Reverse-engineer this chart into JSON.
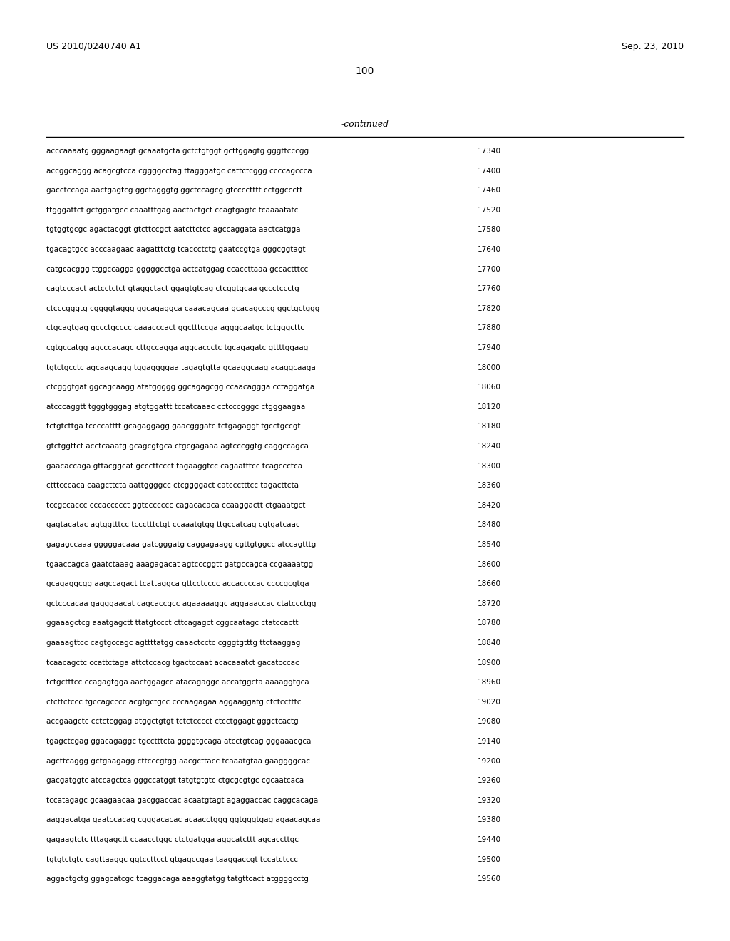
{
  "header_left": "US 2010/0240740 A1",
  "header_right": "Sep. 23, 2010",
  "page_number": "100",
  "continued_label": "-continued",
  "background_color": "#ffffff",
  "text_color": "#000000",
  "font_size_header": 9.0,
  "font_size_page": 10.0,
  "font_size_body": 7.5,
  "font_size_continued": 9.0,
  "sequence_lines": [
    [
      "acccaaaatg gggaagaagt gcaaatgcta gctctgtggt gcttggagtg gggttcccgg",
      "17340"
    ],
    [
      "accggcaggg acagcgtcca cggggcctag ttagggatgc cattctcggg ccccagccca",
      "17400"
    ],
    [
      "gacctccaga aactgagtcg ggctagggtg ggctccagcg gtcccctttt cctggccctt",
      "17460"
    ],
    [
      "ttgggattct gctggatgcc caaatttgag aactactgct ccagtgagtc tcaaaatatc",
      "17520"
    ],
    [
      "tgtggtgcgc agactacggt gtcttccgct aatcttctcc agccaggata aactcatgga",
      "17580"
    ],
    [
      "tgacagtgcc acccaagaac aagatttctg tcaccctctg gaatccgtga gggcggtagt",
      "17640"
    ],
    [
      "catgcacggg ttggccagga gggggcctga actcatggag ccaccttaaa gccactttcc",
      "17700"
    ],
    [
      "cagtcccact actcctctct gtaggctact ggagtgtcag ctcggtgcaa gccctccctg",
      "17760"
    ],
    [
      "ctcccgggtg cggggtaggg ggcagaggca caaacagcaa gcacagcccg ggctgctggg",
      "17820"
    ],
    [
      "ctgcagtgag gccctgcccc caaacccact ggctttccga agggcaatgc tctgggcttc",
      "17880"
    ],
    [
      "cgtgccatgg agcccacagc cttgccagga aggcaccctc tgcagagatc gttttggaag",
      "17940"
    ],
    [
      "tgtctgcctc agcaagcagg tggaggggaa tagagtgtta gcaaggcaag acaggcaaga",
      "18000"
    ],
    [
      "ctcgggtgat ggcagcaagg atatggggg ggcagagcgg ccaacaggga cctaggatga",
      "18060"
    ],
    [
      "atcccaggtt tgggtgggag atgtggattt tccatcaaac cctcccgggc ctgggaagaa",
      "18120"
    ],
    [
      "tctgtcttga tccccatttt gcagaggagg gaacgggatc tctgagaggt tgcctgccgt",
      "18180"
    ],
    [
      "gtctggttct acctcaaatg gcagcgtgca ctgcgagaaa agtcccggtg caggccagca",
      "18240"
    ],
    [
      "gaacaccaga gttacggcat gcccttccct tagaaggtcc cagaatttcc tcagccctca",
      "18300"
    ],
    [
      "ctttcccaca caagcttcta aattggggcc ctcggggact catccctttcc tagacttcta",
      "18360"
    ],
    [
      "tccgccaccc cccaccccct ggtccccccc cagacacaca ccaaggactt ctgaaatgct",
      "18420"
    ],
    [
      "gagtacatac agtggtttcc tccctttctgt ccaaatgtgg ttgccatcag cgtgatcaac",
      "18480"
    ],
    [
      "gagagccaaa gggggacaaa gatcgggatg caggagaagg cgttgtggcc atccagtttg",
      "18540"
    ],
    [
      "tgaaccagca gaatctaaag aaagagacat agtcccggtt gatgccagca ccgaaaatgg",
      "18600"
    ],
    [
      "gcagaggcgg aagccagact tcattaggca gttcctcccc accaccccac ccccgcgtga",
      "18660"
    ],
    [
      "gctcccacaa gagggaacat cagcaccgcc agaaaaaggc aggaaaccac ctatccctgg",
      "18720"
    ],
    [
      "ggaaagctcg aaatgagctt ttatgtccct cttcagagct cggcaatagc ctatccactt",
      "18780"
    ],
    [
      "gaaaagttcc cagtgccagc agttttatgg caaactcctc cgggtgtttg ttctaaggag",
      "18840"
    ],
    [
      "tcaacagctc ccattctaga attctccacg tgactccaat acacaaatct gacatcccac",
      "18900"
    ],
    [
      "tctgctttcc ccagagtgga aactggagcc atacagaggc accatggcta aaaaggtgca",
      "18960"
    ],
    [
      "ctcttctccc tgccagcccc acgtgctgcc cccaagagaa aggaaggatg ctctcctttc",
      "19020"
    ],
    [
      "accgaagctc cctctcggag atggctgtgt tctctcccct ctcctggagt gggctcactg",
      "19080"
    ],
    [
      "tgagctcgag ggacagaggc tgcctttcta ggggtgcaga atcctgtcag gggaaacgca",
      "19140"
    ],
    [
      "agcttcaggg gctgaagagg cttcccgtgg aacgcttacc tcaaatgtaa gaaggggcac",
      "19200"
    ],
    [
      "gacgatggtc atccagctca gggccatggt tatgtgtgtc ctgcgcgtgc cgcaatcaca",
      "19260"
    ],
    [
      "tccatagagc gcaagaacaa gacggaccac acaatgtagt agaggaccac caggcacaga",
      "19320"
    ],
    [
      "aaggacatga gaatccacag cgggacacac acaacctggg ggtgggtgag agaacagcaa",
      "19380"
    ],
    [
      "gagaagtctc tttagagctt ccaacctggc ctctgatgga aggcatcttt agcaccttgc",
      "19440"
    ],
    [
      "tgtgtctgtc cagttaaggc ggtccttcct gtgagccgaa taaggaccgt tccatctccc",
      "19500"
    ],
    [
      "aggactgctg ggagcatcgc tcaggacaga aaaggtatgg tatgttcact atggggcctg",
      "19560"
    ]
  ]
}
